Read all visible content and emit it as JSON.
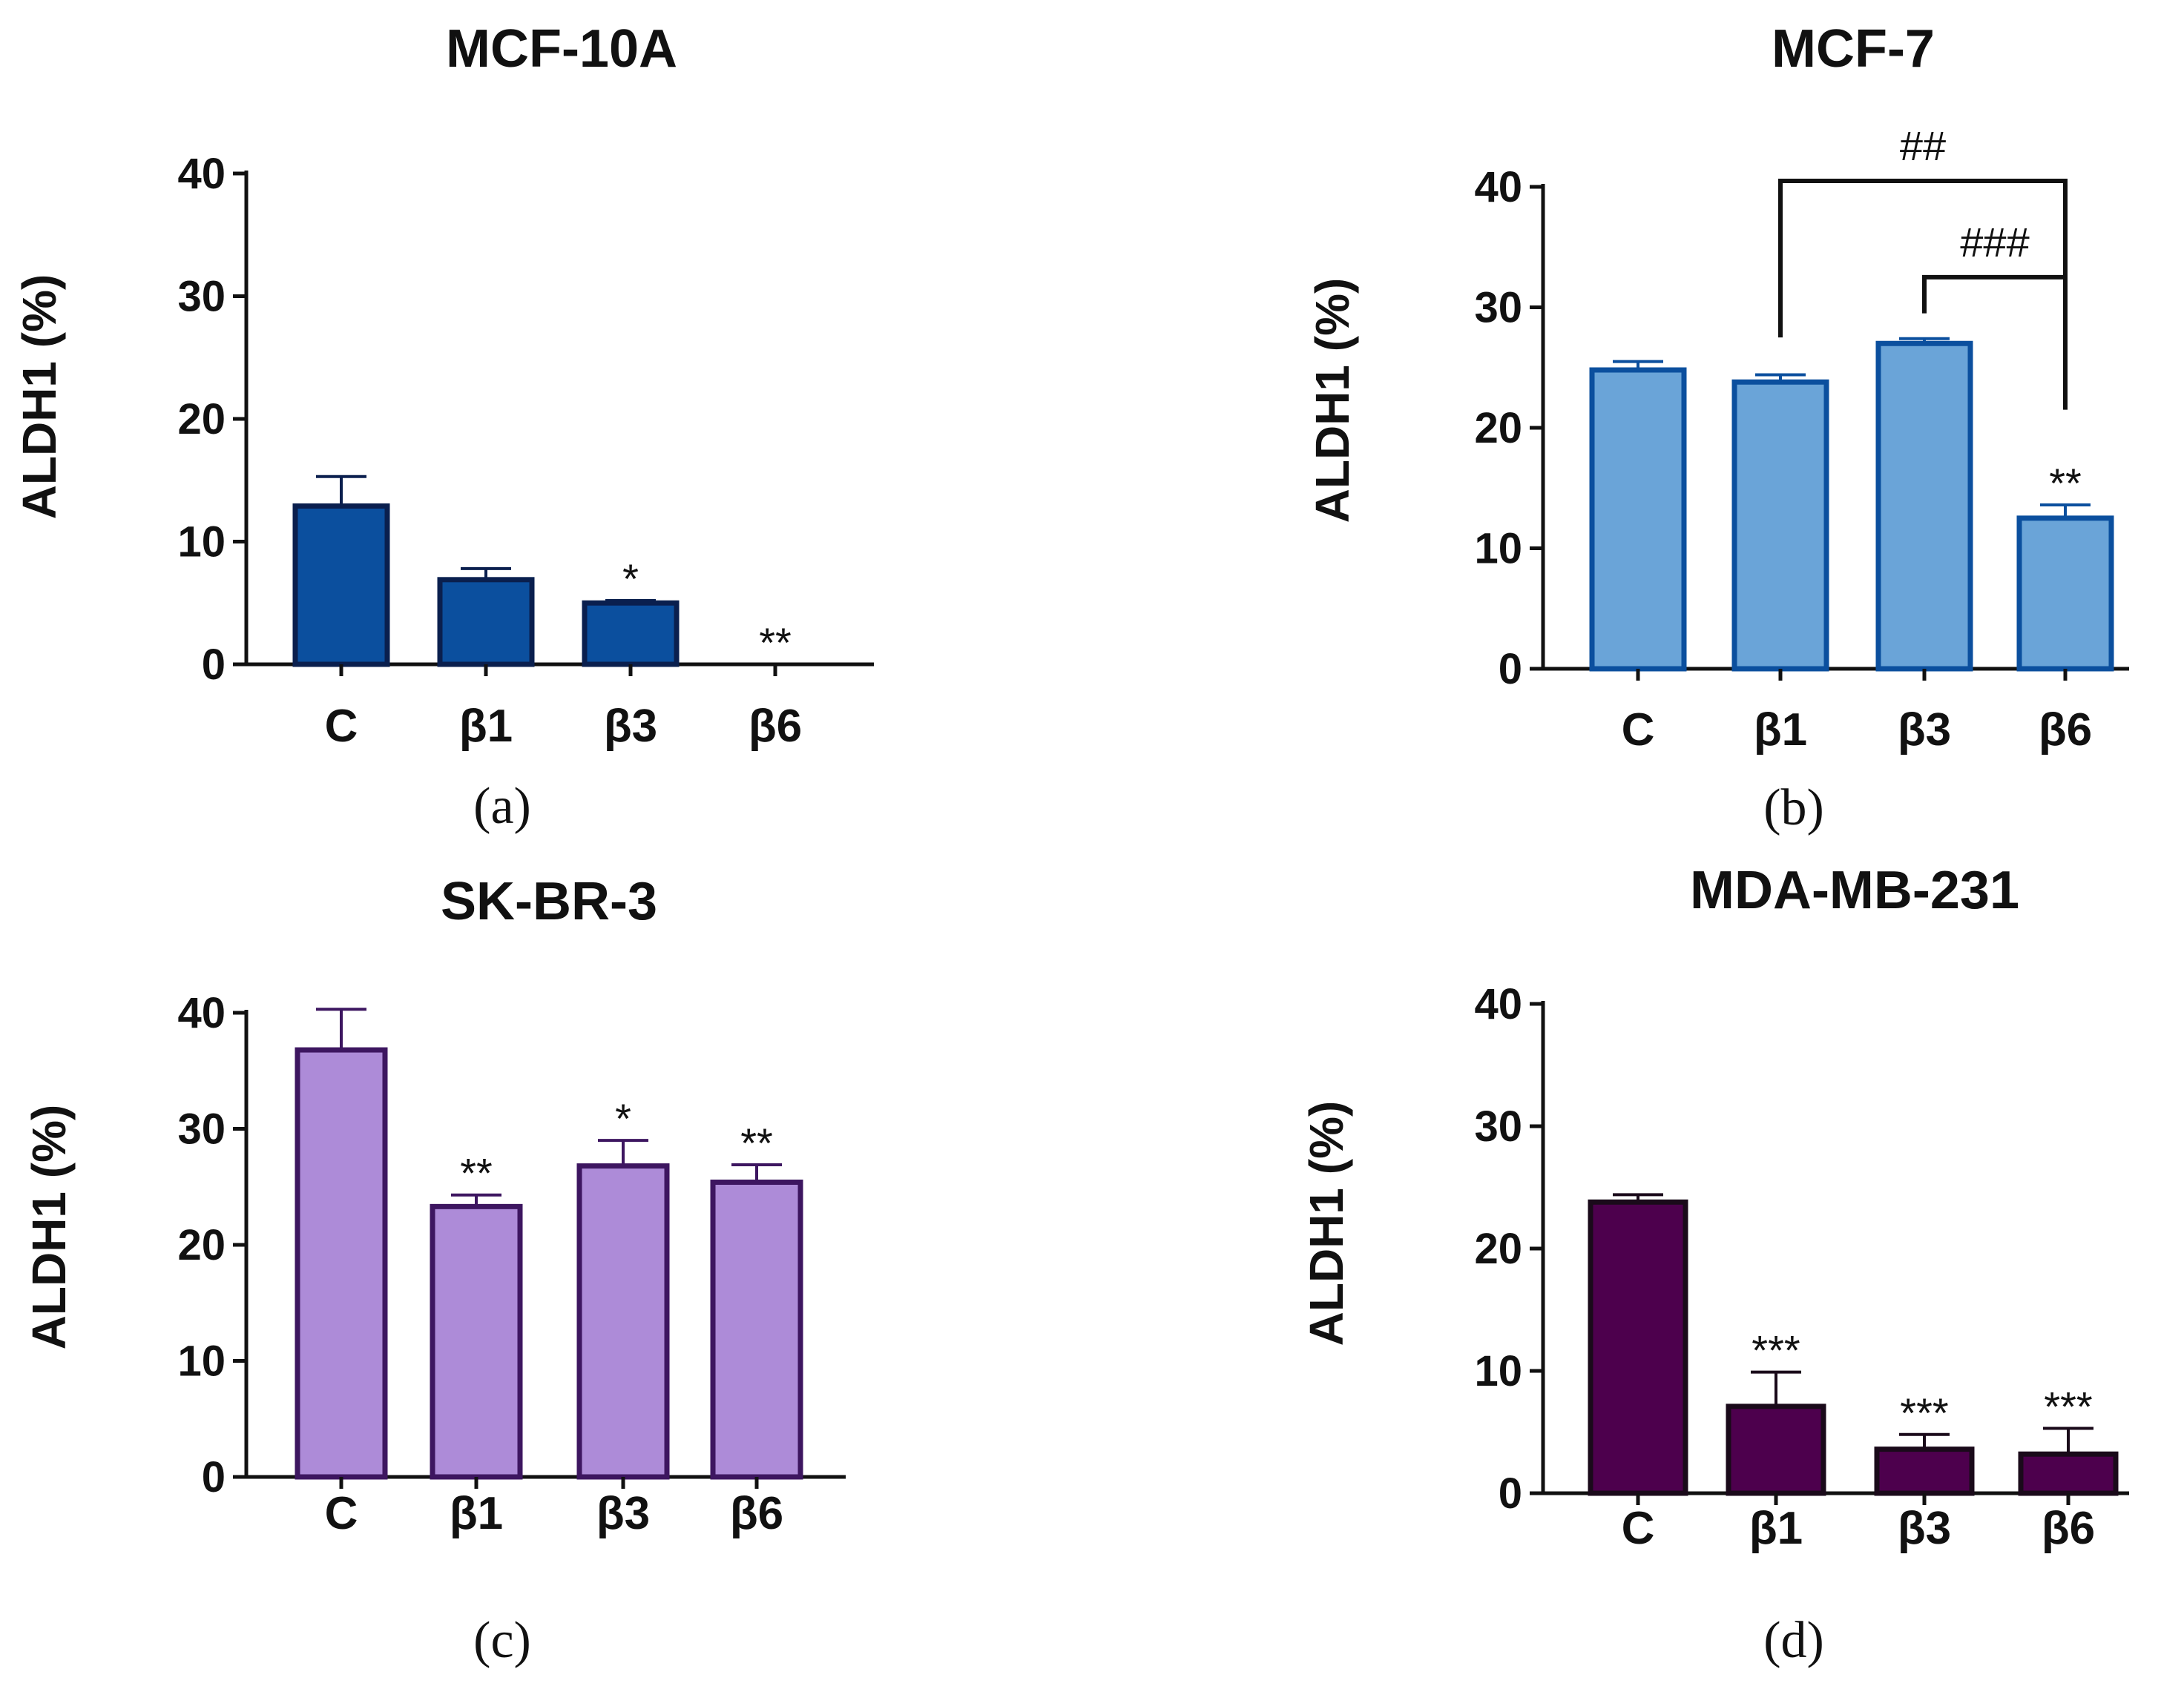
{
  "chart_data": [
    {
      "panel_label": "(a)",
      "type": "bar",
      "title": "MCF-10A",
      "ylabel": "ALDH1 (%)",
      "xlabel": "",
      "categories": [
        "C",
        "β1",
        "β3",
        "β6"
      ],
      "values": [
        12.9,
        6.9,
        5.0,
        0
      ],
      "errors": [
        2.4,
        0.9,
        0.2,
        0
      ],
      "significance": [
        "",
        "",
        "*",
        "**"
      ],
      "yticks": [
        "0",
        "10",
        "20",
        "30",
        "40"
      ],
      "ylim": [
        0,
        40
      ],
      "bar_color": "#0b4f9e",
      "edge_color": "#0a1f4e",
      "brackets": []
    },
    {
      "panel_label": "(b)",
      "type": "bar",
      "title": "MCF-7",
      "ylabel": "ALDH1 (%)",
      "xlabel": "",
      "categories": [
        "C",
        "β1",
        "β3",
        "β6"
      ],
      "values": [
        24.8,
        23.8,
        27.0,
        12.5
      ],
      "errors": [
        0.7,
        0.6,
        0.4,
        1.1
      ],
      "significance": [
        "",
        "",
        "",
        "**"
      ],
      "yticks": [
        "0",
        "10",
        "20",
        "30",
        "40"
      ],
      "ylim": [
        0,
        40
      ],
      "bar_color": "#6aa4d8",
      "edge_color": "#0b4f9e",
      "brackets": [
        {
          "from": 1,
          "to": 3,
          "label": "##"
        },
        {
          "from": 2,
          "to": 3,
          "label": "###"
        }
      ]
    },
    {
      "panel_label": "(c)",
      "type": "bar",
      "title": "SK-BR-3",
      "ylabel": "ALDH1 (%)",
      "xlabel": "",
      "categories": [
        "C",
        "β1",
        "β3",
        "β6"
      ],
      "values": [
        36.8,
        23.3,
        26.8,
        25.4
      ],
      "errors": [
        3.5,
        1.0,
        2.2,
        1.5
      ],
      "significance": [
        "",
        "**",
        "*",
        "**"
      ],
      "yticks": [
        "0",
        "10",
        "20",
        "30",
        "40"
      ],
      "ylim": [
        0,
        40
      ],
      "bar_color": "#ad8bd8",
      "edge_color": "#3d1660",
      "brackets": []
    },
    {
      "panel_label": "(d)",
      "type": "bar",
      "title": "MDA-MB-231",
      "ylabel": "ALDH1 (%)",
      "xlabel": "",
      "categories": [
        "C",
        "β1",
        "β3",
        "β6"
      ],
      "values": [
        23.8,
        7.1,
        3.6,
        3.2
      ],
      "errors": [
        0.6,
        2.8,
        1.2,
        2.1
      ],
      "significance": [
        "",
        "***",
        "***",
        "***"
      ],
      "yticks": [
        "0",
        "10",
        "20",
        "30",
        "40"
      ],
      "ylim": [
        0,
        40
      ],
      "bar_color": "#4d004d",
      "edge_color": "#1a0a1a",
      "brackets": []
    }
  ]
}
